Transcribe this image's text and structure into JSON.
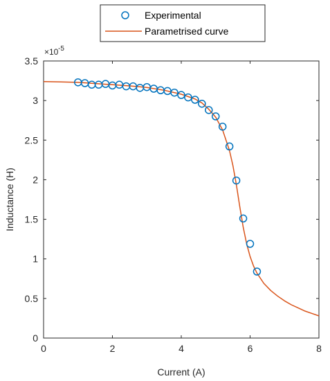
{
  "chart_data": {
    "type": "scatter",
    "xlabel": "Current (A)",
    "ylabel": "Inductance (H)",
    "xlim": [
      0,
      8
    ],
    "ylim": [
      0,
      3.5
    ],
    "y_exponent_label": "×10",
    "y_exponent_power": "-5",
    "x_ticks": [
      "0",
      "2",
      "4",
      "6",
      "8"
    ],
    "y_ticks": [
      "0",
      "0.5",
      "1",
      "1.5",
      "2",
      "2.5",
      "3",
      "3.5"
    ],
    "grid": false,
    "legend_position": "top-center, outside",
    "colors": {
      "experimental": "#0072BD",
      "curve": "#D95319",
      "axes": "#262626"
    },
    "series": [
      {
        "name": "Experimental",
        "marker": "circle",
        "points": [
          [
            1.0,
            3.23
          ],
          [
            1.2,
            3.22
          ],
          [
            1.4,
            3.2
          ],
          [
            1.6,
            3.2
          ],
          [
            1.8,
            3.21
          ],
          [
            2.0,
            3.19
          ],
          [
            2.2,
            3.2
          ],
          [
            2.4,
            3.18
          ],
          [
            2.6,
            3.18
          ],
          [
            2.8,
            3.16
          ],
          [
            3.0,
            3.17
          ],
          [
            3.2,
            3.15
          ],
          [
            3.4,
            3.13
          ],
          [
            3.6,
            3.12
          ],
          [
            3.8,
            3.1
          ],
          [
            4.0,
            3.07
          ],
          [
            4.2,
            3.04
          ],
          [
            4.4,
            3.01
          ],
          [
            4.6,
            2.96
          ],
          [
            4.8,
            2.88
          ],
          [
            5.0,
            2.8
          ],
          [
            5.2,
            2.67
          ],
          [
            5.4,
            2.42
          ],
          [
            5.6,
            1.99
          ],
          [
            5.8,
            1.51
          ],
          [
            6.0,
            1.19
          ],
          [
            6.2,
            0.84
          ]
        ]
      },
      {
        "name": "Parametrised curve",
        "line": true,
        "points": [
          [
            0.0,
            3.24
          ],
          [
            0.5,
            3.235
          ],
          [
            1.0,
            3.23
          ],
          [
            1.5,
            3.215
          ],
          [
            2.0,
            3.2
          ],
          [
            2.5,
            3.185
          ],
          [
            3.0,
            3.165
          ],
          [
            3.5,
            3.13
          ],
          [
            4.0,
            3.08
          ],
          [
            4.4,
            3.02
          ],
          [
            4.6,
            2.97
          ],
          [
            4.8,
            2.89
          ],
          [
            5.0,
            2.79
          ],
          [
            5.2,
            2.63
          ],
          [
            5.4,
            2.37
          ],
          [
            5.5,
            2.18
          ],
          [
            5.6,
            1.94
          ],
          [
            5.7,
            1.66
          ],
          [
            5.8,
            1.4
          ],
          [
            5.9,
            1.19
          ],
          [
            6.0,
            1.03
          ],
          [
            6.1,
            0.91
          ],
          [
            6.2,
            0.82
          ],
          [
            6.4,
            0.69
          ],
          [
            6.6,
            0.6
          ],
          [
            6.8,
            0.53
          ],
          [
            7.0,
            0.47
          ],
          [
            7.2,
            0.42
          ],
          [
            7.4,
            0.38
          ],
          [
            7.6,
            0.34
          ],
          [
            7.8,
            0.31
          ],
          [
            8.0,
            0.28
          ]
        ]
      }
    ]
  }
}
